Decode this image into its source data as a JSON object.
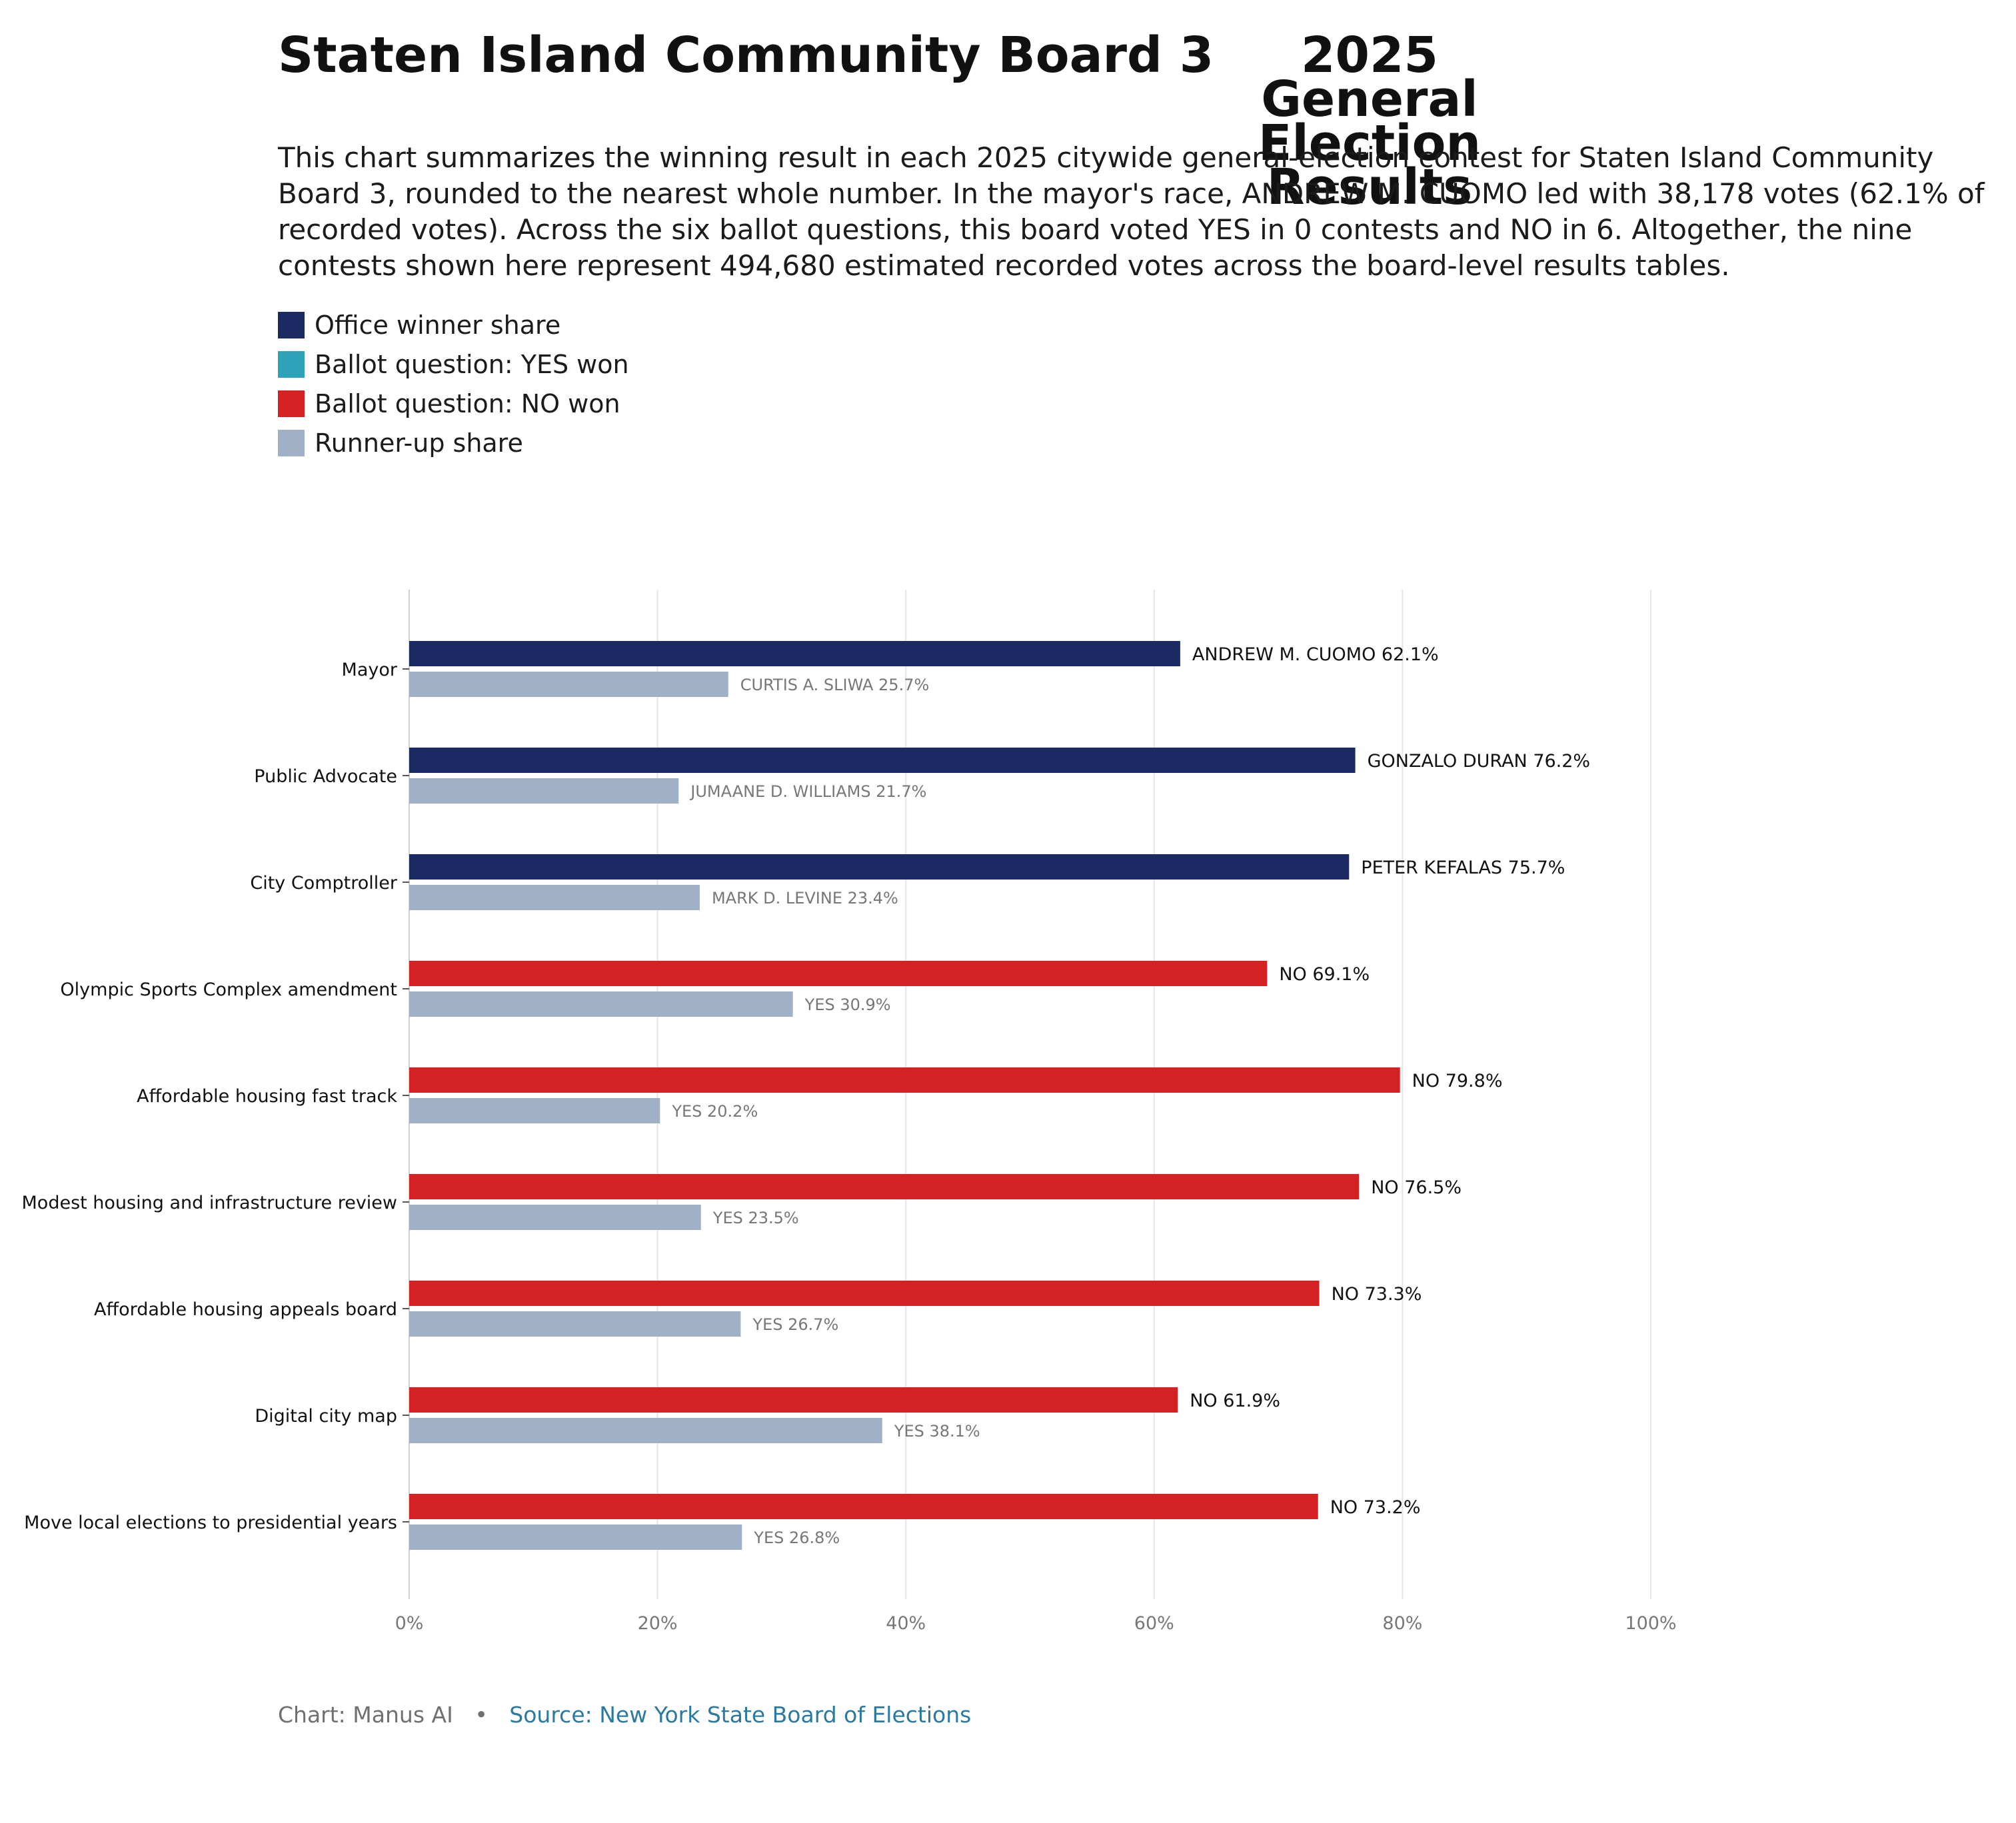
{
  "title": {
    "left": "Staten Island Community Board 3",
    "right": "2025 General Election Results"
  },
  "subtitle": "This chart summarizes the winning result in each 2025 citywide general-election contest for Staten Island Community Board 3, rounded to the nearest whole number. In the mayor's race, ANDREW M. CUOMO led with 38,178 votes (62.1% of recorded votes). Across the six ballot questions, this board voted YES in 0 contests and NO in 6. Altogether, the nine contests shown here represent 494,680 estimated recorded votes across the board-level results tables.",
  "legend": [
    {
      "label": "Office winner share",
      "color": "#1b2a63"
    },
    {
      "label": "Ballot question: YES won",
      "color": "#2ea2b8"
    },
    {
      "label": "Ballot question: NO won",
      "color": "#d42224"
    },
    {
      "label": "Runner-up share",
      "color": "#a0b1c7"
    }
  ],
  "footer": {
    "credit": "Chart: Manus AI",
    "separator": "•",
    "source": "Source: New York State Board of Elections"
  },
  "chart_data": {
    "type": "bar",
    "orientation": "horizontal",
    "xlim": [
      0,
      100
    ],
    "x_ticks": [
      "0%",
      "20%",
      "40%",
      "60%",
      "80%",
      "100%"
    ],
    "grid": "vertical",
    "categories": [
      "Mayor",
      "Public Advocate",
      "City Comptroller",
      "Olympic Sports Complex amendment",
      "Affordable housing fast track",
      "Modest housing and infrastructure review",
      "Affordable housing appeals board",
      "Digital city map",
      "Move local elections to presidential years"
    ],
    "series": [
      {
        "role": "winner",
        "values": [
          62.1,
          76.2,
          75.7,
          69.1,
          79.8,
          76.5,
          73.3,
          61.9,
          73.2
        ],
        "labels": [
          "ANDREW M. CUOMO 62.1%",
          "GONZALO DURAN 76.2%",
          "PETER KEFALAS 75.7%",
          "NO 69.1%",
          "NO 79.8%",
          "NO 76.5%",
          "NO 73.3%",
          "NO 61.9%",
          "NO 73.2%"
        ],
        "colors": [
          "#1b2a63",
          "#1b2a63",
          "#1b2a63",
          "#d42224",
          "#d42224",
          "#d42224",
          "#d42224",
          "#d42224",
          "#d42224"
        ]
      },
      {
        "role": "runner-up",
        "values": [
          25.7,
          21.7,
          23.4,
          30.9,
          20.2,
          23.5,
          26.7,
          38.1,
          26.8
        ],
        "labels": [
          "CURTIS A. SLIWA 25.7%",
          "JUMAANE D. WILLIAMS 21.7%",
          "MARK D. LEVINE 23.4%",
          "YES 30.9%",
          "YES 20.2%",
          "YES 23.5%",
          "YES 26.7%",
          "YES 38.1%",
          "YES 26.8%"
        ],
        "color": "#a0b1c7"
      }
    ]
  }
}
